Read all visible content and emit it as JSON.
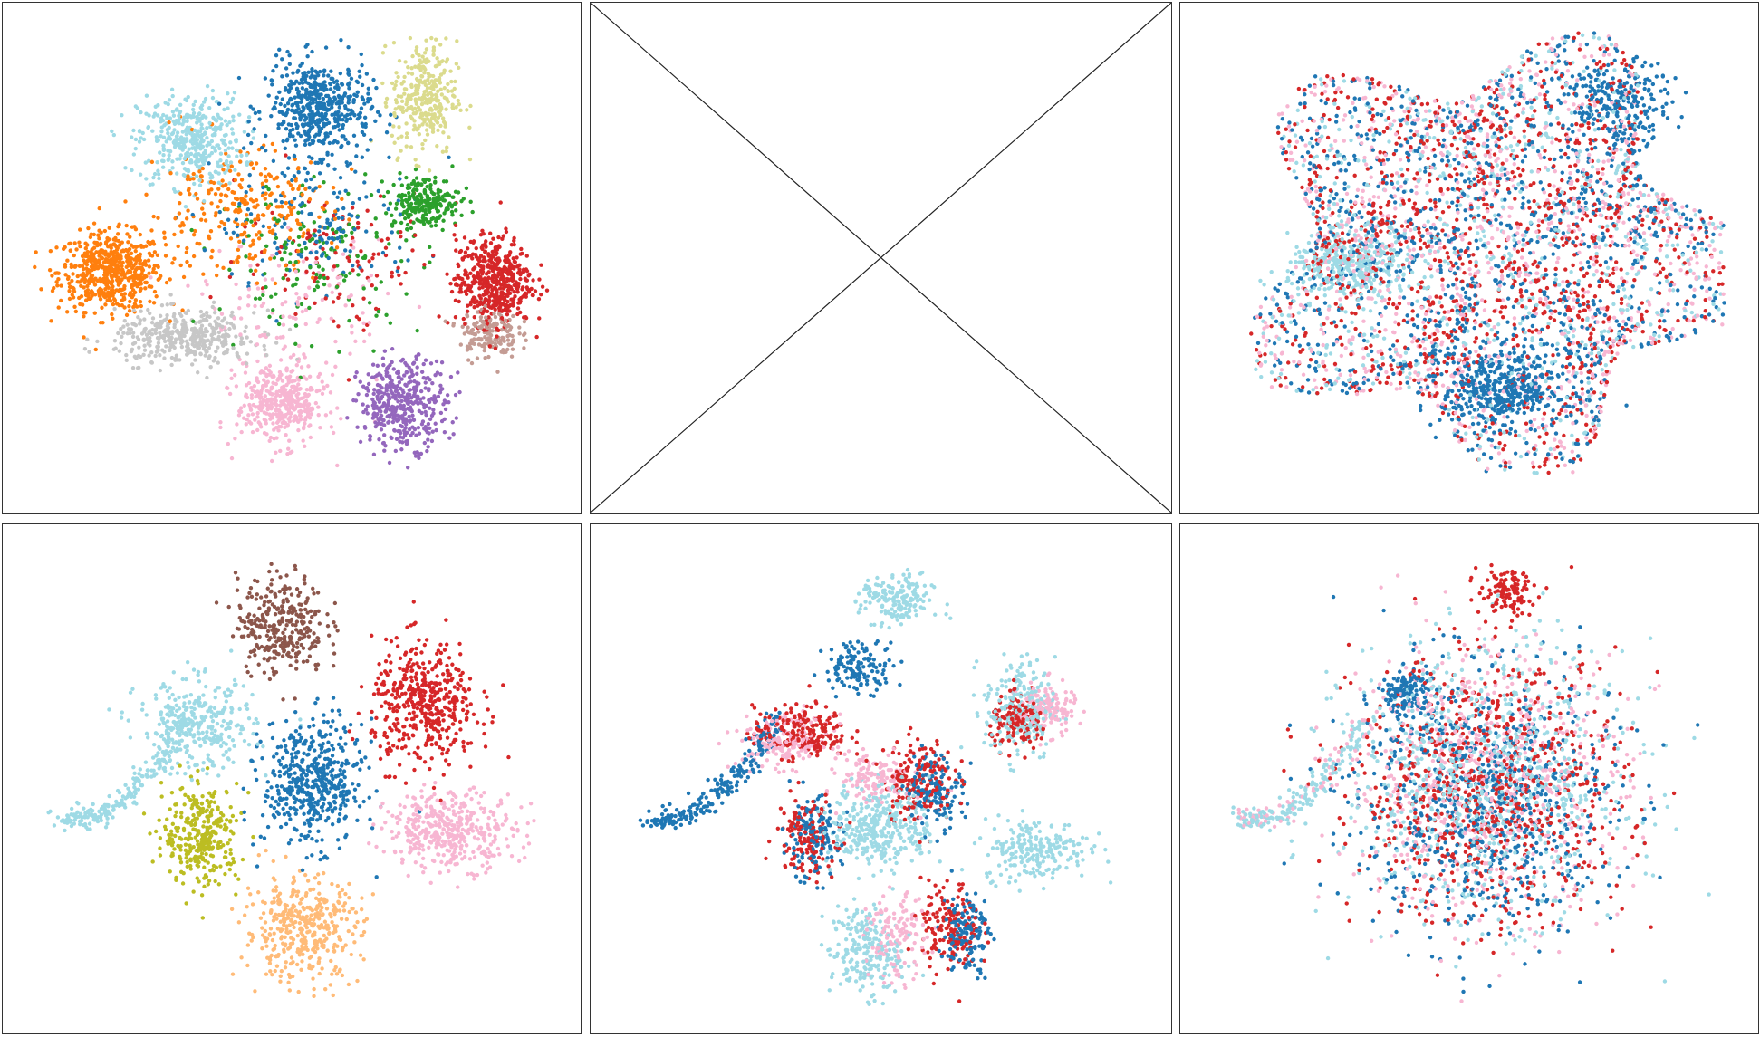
{
  "colors": {
    "tab_blue": "#1f77b4",
    "tab_orange": "#ff7f0e",
    "tab_green": "#2ca02c",
    "tab_red": "#d62728",
    "tab_purple": "#9467bd",
    "tab_brown": "#8c564b",
    "tab_pink": "#f7b6d2",
    "tab_gray": "#c7c7c7",
    "tab_olive": "#dbdb8d",
    "tab_olive_dark": "#bcbd22",
    "tab_cyan_light": "#9edae5",
    "tab_peach": "#ffbb78",
    "tab_tan": "#c49c94"
  },
  "chart_data": [
    {
      "type": "scatter",
      "panel": "top-left",
      "grid": false,
      "axes_visible": false,
      "xlim": [
        0,
        10
      ],
      "ylim": [
        0,
        10
      ],
      "series": [
        {
          "color": "tab_orange",
          "center": [
            1.6,
            4.7
          ],
          "spread": [
            0.9,
            0.75
          ],
          "n": 1300
        },
        {
          "color": "tab_cyan_light",
          "center": [
            3.1,
            7.5
          ],
          "spread": [
            0.9,
            0.9
          ],
          "n": 900
        },
        {
          "color": "tab_blue",
          "center": [
            5.5,
            8.2
          ],
          "spread": [
            0.9,
            0.9
          ],
          "n": 1100
        },
        {
          "color": "tab_olive",
          "center": [
            7.5,
            8.4
          ],
          "spread": [
            0.55,
            1.1
          ],
          "n": 700
        },
        {
          "color": "tab_green",
          "center": [
            7.5,
            6.2
          ],
          "spread": [
            0.6,
            0.5
          ],
          "n": 500
        },
        {
          "color": "tab_red",
          "center": [
            8.8,
            4.5
          ],
          "spread": [
            0.65,
            0.85
          ],
          "n": 1100
        },
        {
          "color": "tab_tan",
          "center": [
            8.7,
            3.4
          ],
          "spread": [
            0.5,
            0.5
          ],
          "n": 350
        },
        {
          "color": "tab_gray",
          "center": [
            3.0,
            3.3
          ],
          "spread": [
            1.2,
            0.5
          ],
          "n": 900
        },
        {
          "color": "tab_pink",
          "center": [
            4.8,
            1.9
          ],
          "spread": [
            0.75,
            0.8
          ],
          "n": 900
        },
        {
          "color": "tab_purple",
          "center": [
            7.1,
            1.9
          ],
          "spread": [
            0.75,
            0.85
          ],
          "n": 900
        },
        {
          "color": "tab_orange",
          "center": [
            4.0,
            6.0
          ],
          "spread": [
            1.6,
            1.2
          ],
          "n": 600
        },
        {
          "color": "tab_green",
          "center": [
            5.5,
            5.0
          ],
          "spread": [
            1.8,
            1.4
          ],
          "n": 350
        },
        {
          "color": "tab_red",
          "center": [
            6.0,
            5.0
          ],
          "spread": [
            1.8,
            1.4
          ],
          "n": 250
        },
        {
          "color": "tab_blue",
          "center": [
            5.5,
            5.8
          ],
          "spread": [
            1.8,
            1.4
          ],
          "n": 350
        },
        {
          "color": "tab_pink",
          "center": [
            5.0,
            4.0
          ],
          "spread": [
            1.6,
            1.2
          ],
          "n": 250
        }
      ]
    },
    {
      "type": "placeholder",
      "panel": "top-middle",
      "empty": true,
      "crossed_out": true
    },
    {
      "type": "scatter",
      "panel": "top-right",
      "grid": false,
      "axes_visible": false,
      "xlim": [
        0,
        10
      ],
      "ylim": [
        0,
        10
      ],
      "series": [
        {
          "color": "tab_blue",
          "blob": "star",
          "n": 2600
        },
        {
          "color": "tab_red",
          "blob": "star",
          "n": 2600
        },
        {
          "color": "tab_pink",
          "blob": "star",
          "n": 2200
        },
        {
          "color": "tab_cyan_light",
          "blob": "star",
          "n": 1600
        },
        {
          "color": "tab_cyan_light",
          "center": [
            2.8,
            4.8
          ],
          "spread": [
            1.1,
            0.6
          ],
          "n": 700
        },
        {
          "color": "tab_blue",
          "center": [
            5.6,
            2.2
          ],
          "spread": [
            1.0,
            0.7
          ],
          "n": 900
        },
        {
          "color": "tab_blue",
          "center": [
            7.8,
            8.3
          ],
          "spread": [
            0.9,
            0.8
          ],
          "n": 500
        }
      ]
    },
    {
      "type": "scatter",
      "panel": "bottom-left",
      "grid": false,
      "axes_visible": false,
      "xlim": [
        0,
        10
      ],
      "ylim": [
        0,
        10
      ],
      "series": [
        {
          "color": "tab_brown",
          "center": [
            4.8,
            8.3
          ],
          "spread": [
            0.75,
            0.95
          ],
          "n": 700
        },
        {
          "color": "tab_red",
          "center": [
            7.5,
            6.6
          ],
          "spread": [
            0.9,
            1.2
          ],
          "n": 1000
        },
        {
          "color": "tab_blue",
          "center": [
            5.4,
            4.9
          ],
          "spread": [
            0.85,
            1.2
          ],
          "n": 1100
        },
        {
          "color": "tab_pink",
          "center": [
            8.0,
            3.9
          ],
          "spread": [
            1.1,
            0.75
          ],
          "n": 900
        },
        {
          "color": "tab_peach",
          "center": [
            5.2,
            1.8
          ],
          "spread": [
            1.0,
            1.0
          ],
          "n": 900
        },
        {
          "color": "tab_olive_dark",
          "center": [
            3.3,
            3.8
          ],
          "spread": [
            0.65,
            0.95
          ],
          "n": 700
        },
        {
          "color": "tab_cyan_light",
          "center": [
            3.2,
            6.1
          ],
          "spread": [
            1.0,
            0.9
          ],
          "n": 700
        },
        {
          "color": "tab_cyan_light",
          "arc": true,
          "n": 500
        }
      ]
    },
    {
      "type": "scatter",
      "panel": "bottom-middle",
      "grid": false,
      "axes_visible": false,
      "xlim": [
        0,
        10
      ],
      "ylim": [
        0,
        10
      ],
      "series": [
        {
          "color": "tab_cyan_light",
          "center": [
            5.0,
            4.0
          ],
          "spread": [
            0.85,
            0.8
          ],
          "n": 800
        },
        {
          "color": "tab_cyan_light",
          "center": [
            5.3,
            8.8
          ],
          "spread": [
            0.6,
            0.5
          ],
          "n": 400
        },
        {
          "color": "tab_cyan_light",
          "center": [
            7.6,
            6.5
          ],
          "spread": [
            0.6,
            1.0
          ],
          "n": 500
        },
        {
          "color": "tab_cyan_light",
          "center": [
            7.9,
            3.5
          ],
          "spread": [
            0.9,
            0.6
          ],
          "n": 500
        },
        {
          "color": "tab_cyan_light",
          "center": [
            4.7,
            1.3
          ],
          "spread": [
            0.6,
            0.9
          ],
          "n": 500
        },
        {
          "color": "tab_red",
          "center": [
            3.5,
            6.0
          ],
          "spread": [
            0.8,
            0.5
          ],
          "n": 500
        },
        {
          "color": "tab_red",
          "center": [
            5.7,
            5.0
          ],
          "spread": [
            0.6,
            0.8
          ],
          "n": 400
        },
        {
          "color": "tab_red",
          "center": [
            6.3,
            1.8
          ],
          "spread": [
            0.5,
            0.9
          ],
          "n": 350
        },
        {
          "color": "tab_red",
          "center": [
            7.6,
            6.2
          ],
          "spread": [
            0.5,
            0.5
          ],
          "n": 300
        },
        {
          "color": "tab_red",
          "center": [
            3.6,
            3.8
          ],
          "spread": [
            0.5,
            0.8
          ],
          "n": 300
        },
        {
          "color": "tab_pink",
          "center": [
            3.2,
            5.8
          ],
          "spread": [
            0.8,
            0.5
          ],
          "n": 400
        },
        {
          "color": "tab_pink",
          "center": [
            4.9,
            5.0
          ],
          "spread": [
            0.6,
            0.5
          ],
          "n": 300
        },
        {
          "color": "tab_pink",
          "center": [
            8.1,
            6.5
          ],
          "spread": [
            0.5,
            0.5
          ],
          "n": 300
        },
        {
          "color": "tab_pink",
          "center": [
            5.3,
            1.6
          ],
          "spread": [
            0.5,
            0.8
          ],
          "n": 300
        },
        {
          "color": "tab_blue",
          "center": [
            4.6,
            7.4
          ],
          "spread": [
            0.6,
            0.5
          ],
          "n": 300
        },
        {
          "color": "tab_blue",
          "center": [
            6.0,
            4.8
          ],
          "spread": [
            0.5,
            0.7
          ],
          "n": 300
        },
        {
          "color": "tab_blue",
          "center": [
            6.6,
            1.7
          ],
          "spread": [
            0.4,
            0.8
          ],
          "n": 300
        },
        {
          "color": "tab_blue",
          "center": [
            3.7,
            3.7
          ],
          "spread": [
            0.5,
            0.8
          ],
          "n": 300
        },
        {
          "color": "tab_blue",
          "arc": true,
          "n": 500
        }
      ]
    },
    {
      "type": "scatter",
      "panel": "bottom-right",
      "grid": false,
      "axes_visible": false,
      "xlim": [
        0,
        10
      ],
      "ylim": [
        0,
        10
      ],
      "series": [
        {
          "color": "tab_cyan_light",
          "center": [
            5.3,
            5.0
          ],
          "spread": [
            2.4,
            2.6
          ],
          "n": 1800
        },
        {
          "color": "tab_pink",
          "center": [
            5.3,
            5.0
          ],
          "spread": [
            2.4,
            2.6
          ],
          "n": 1400
        },
        {
          "color": "tab_red",
          "center": [
            5.4,
            4.8
          ],
          "spread": [
            2.3,
            2.6
          ],
          "n": 1800
        },
        {
          "color": "tab_blue",
          "center": [
            5.3,
            4.5
          ],
          "spread": [
            2.2,
            2.5
          ],
          "n": 1600
        },
        {
          "color": "tab_blue",
          "center": [
            3.8,
            6.8
          ],
          "spread": [
            0.5,
            0.5
          ],
          "n": 300
        },
        {
          "color": "tab_red",
          "center": [
            5.7,
            9.0
          ],
          "spread": [
            0.5,
            0.4
          ],
          "n": 250
        },
        {
          "color": "tab_cyan_light",
          "arc": true,
          "n": 350
        },
        {
          "color": "tab_pink",
          "arc": true,
          "n": 150
        }
      ]
    }
  ]
}
